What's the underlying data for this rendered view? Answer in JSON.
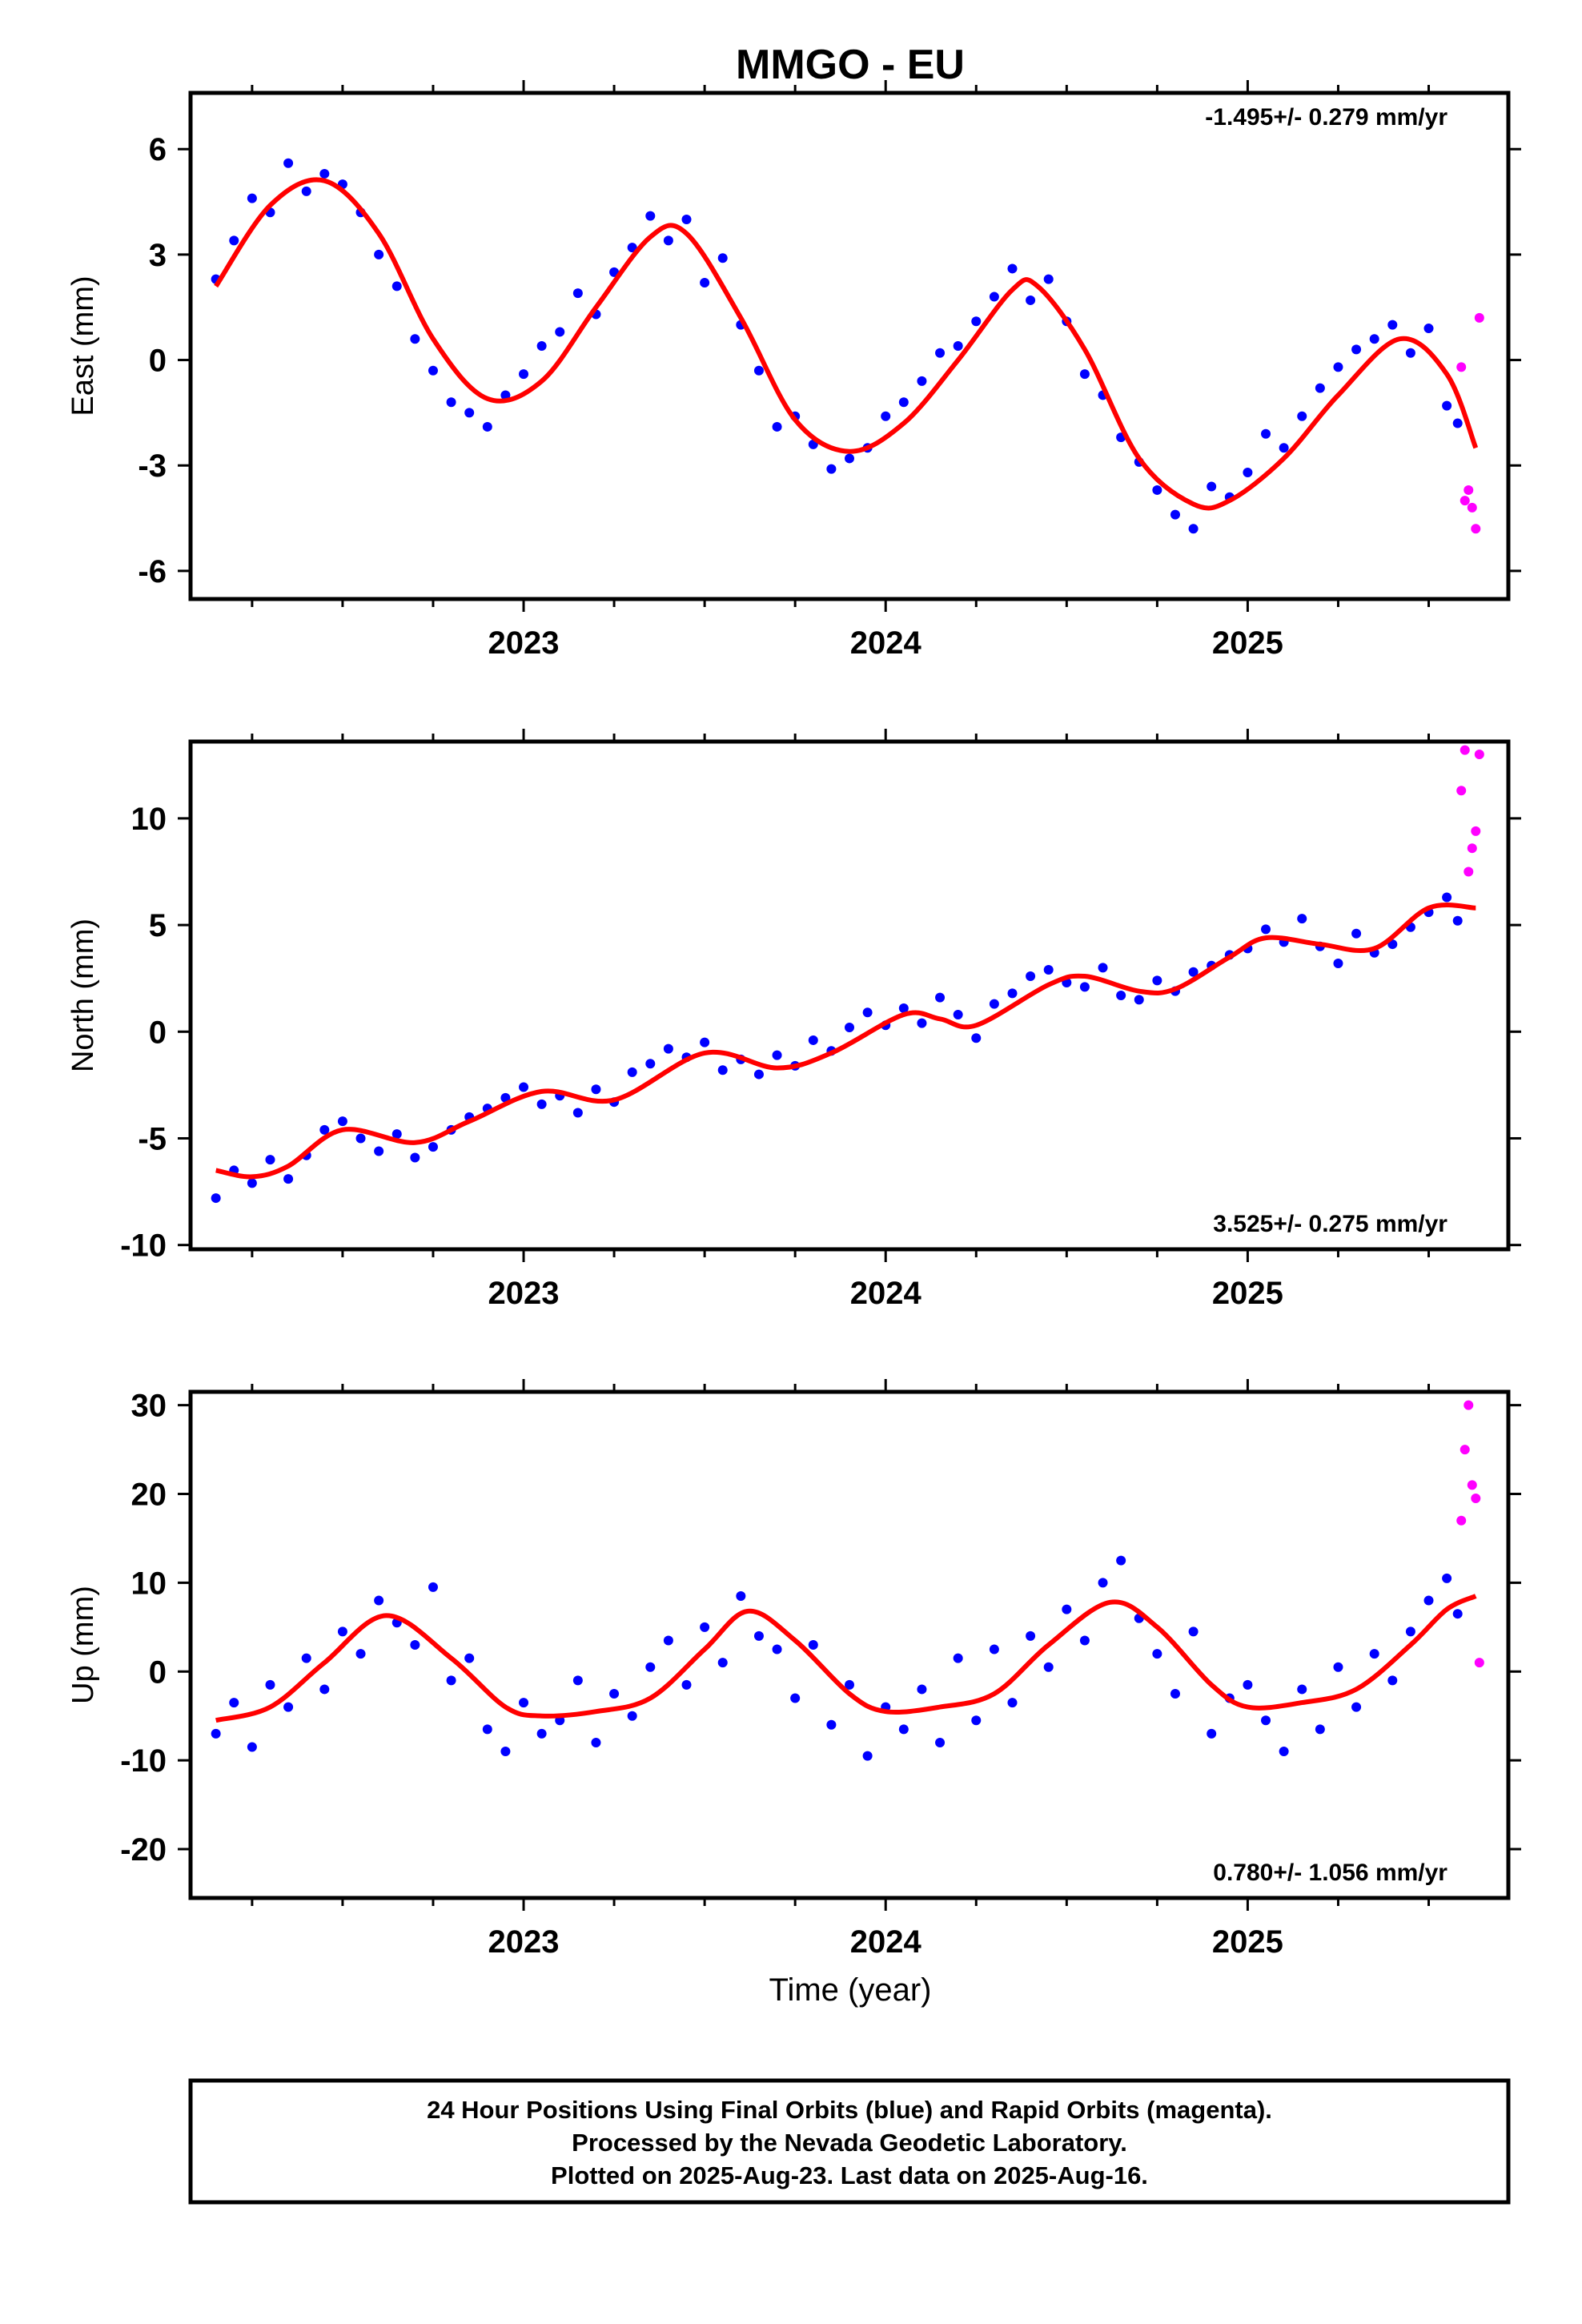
{
  "title": "MMGO - EU",
  "colors": {
    "final_orbits": "#0000ff",
    "rapid_orbits": "#ff00ff",
    "fit": "#ff0000",
    "frame": "#000000"
  },
  "xlabel": "Time (year)",
  "x_ticks": [
    "2023",
    "2024",
    "2025"
  ],
  "footer": {
    "line1": "24 Hour Positions Using Final Orbits (blue) and Rapid Orbits (magenta).",
    "line2": "Processed by the Nevada Geodetic Laboratory.",
    "line3": "Plotted on 2025-Aug-23. Last data on 2025-Aug-16."
  },
  "panels": [
    {
      "ylabel": "East (mm)",
      "rate": "-1.495+/- 0.279 mm/yr",
      "rate_position": "top-right",
      "y_ticks": [
        "6",
        "3",
        "0",
        "-3",
        "-6"
      ]
    },
    {
      "ylabel": "North (mm)",
      "rate": "3.525+/- 0.275 mm/yr",
      "rate_position": "bottom-right",
      "y_ticks": [
        "10",
        "5",
        "0",
        "-5",
        "-10"
      ]
    },
    {
      "ylabel": "Up (mm)",
      "rate": "0.780+/- 1.056 mm/yr",
      "rate_position": "bottom-right",
      "y_ticks": [
        "30",
        "20",
        "10",
        "0",
        "-10",
        "-20"
      ]
    }
  ],
  "chart_data": [
    {
      "type": "scatter",
      "component": "East",
      "ylabel": "East (mm)",
      "xlim": [
        2022.08,
        2025.72
      ],
      "ylim": [
        -6.8,
        7.6
      ],
      "x_ticks": [
        2023,
        2024,
        2025
      ],
      "y_ticks": [
        6,
        3,
        0,
        -3,
        -6
      ],
      "rate_mm_per_yr": -1.495,
      "rate_sigma": 0.279,
      "fit": {
        "x": [
          2022.15,
          2022.3,
          2022.45,
          2022.6,
          2022.75,
          2022.9,
          2023.05,
          2023.2,
          2023.35,
          2023.45,
          2023.6,
          2023.75,
          2023.9,
          2024.05,
          2024.2,
          2024.35,
          2024.42,
          2024.55,
          2024.7,
          2024.85,
          2024.95,
          2025.1,
          2025.25,
          2025.42,
          2025.55,
          2025.63
        ],
        "y": [
          2.1,
          4.4,
          5.1,
          3.6,
          0.6,
          -1.1,
          -0.6,
          1.5,
          3.5,
          3.6,
          1.2,
          -1.7,
          -2.6,
          -1.8,
          0.0,
          2.0,
          2.1,
          0.3,
          -2.8,
          -4.1,
          -4.0,
          -2.8,
          -1.0,
          0.6,
          -0.4,
          -2.5
        ]
      },
      "series": [
        {
          "name": "Final Orbits (blue)",
          "x": [
            2022.15,
            2022.2,
            2022.25,
            2022.3,
            2022.35,
            2022.4,
            2022.45,
            2022.5,
            2022.55,
            2022.6,
            2022.65,
            2022.7,
            2022.75,
            2022.8,
            2022.85,
            2022.9,
            2022.95,
            2023.0,
            2023.05,
            2023.1,
            2023.15,
            2023.2,
            2023.25,
            2023.3,
            2023.35,
            2023.4,
            2023.45,
            2023.5,
            2023.55,
            2023.6,
            2023.65,
            2023.7,
            2023.75,
            2023.8,
            2023.85,
            2023.9,
            2023.95,
            2024.0,
            2024.05,
            2024.1,
            2024.15,
            2024.2,
            2024.25,
            2024.3,
            2024.35,
            2024.4,
            2024.45,
            2024.5,
            2024.55,
            2024.6,
            2024.65,
            2024.7,
            2024.75,
            2024.8,
            2024.85,
            2024.9,
            2024.95,
            2025.0,
            2025.05,
            2025.1,
            2025.15,
            2025.2,
            2025.25,
            2025.3,
            2025.35,
            2025.4,
            2025.45,
            2025.5,
            2025.55,
            2025.58
          ],
          "y": [
            2.3,
            3.4,
            4.6,
            4.2,
            5.6,
            4.8,
            5.3,
            5.0,
            4.2,
            3.0,
            2.1,
            0.6,
            -0.3,
            -1.2,
            -1.5,
            -1.9,
            -1.0,
            -0.4,
            0.4,
            0.8,
            1.9,
            1.3,
            2.5,
            3.2,
            4.1,
            3.4,
            4.0,
            2.2,
            2.9,
            1.0,
            -0.3,
            -1.9,
            -1.6,
            -2.4,
            -3.1,
            -2.8,
            -2.5,
            -1.6,
            -1.2,
            -0.6,
            0.2,
            0.4,
            1.1,
            1.8,
            2.6,
            1.7,
            2.3,
            1.1,
            -0.4,
            -1.0,
            -2.2,
            -2.9,
            -3.7,
            -4.4,
            -4.8,
            -3.6,
            -3.9,
            -3.2,
            -2.1,
            -2.5,
            -1.6,
            -0.8,
            -0.2,
            0.3,
            0.6,
            1.0,
            0.2,
            0.9,
            -1.3,
            -1.8
          ]
        },
        {
          "name": "Rapid Orbits (magenta)",
          "x": [
            2025.59,
            2025.6,
            2025.61,
            2025.62,
            2025.63,
            2025.64
          ],
          "y": [
            -0.2,
            -4.0,
            -3.7,
            -4.2,
            -4.8,
            1.2
          ]
        }
      ]
    },
    {
      "type": "scatter",
      "component": "North",
      "ylabel": "North (mm)",
      "xlim": [
        2022.08,
        2025.72
      ],
      "ylim": [
        -10.2,
        13.6
      ],
      "x_ticks": [
        2023,
        2024,
        2025
      ],
      "y_ticks": [
        10,
        5,
        0,
        -5,
        -10
      ],
      "rate_mm_per_yr": 3.525,
      "rate_sigma": 0.275,
      "fit": {
        "x": [
          2022.15,
          2022.25,
          2022.35,
          2022.5,
          2022.7,
          2022.85,
          2023.05,
          2023.25,
          2023.5,
          2023.7,
          2023.85,
          2024.05,
          2024.15,
          2024.25,
          2024.45,
          2024.55,
          2024.7,
          2024.8,
          2024.95,
          2025.05,
          2025.2,
          2025.35,
          2025.5,
          2025.63
        ],
        "y": [
          -6.5,
          -6.8,
          -6.3,
          -4.6,
          -5.2,
          -4.2,
          -2.8,
          -3.2,
          -1.0,
          -1.7,
          -1.0,
          0.8,
          0.6,
          0.3,
          2.2,
          2.6,
          1.9,
          2.0,
          3.5,
          4.4,
          4.1,
          3.9,
          5.8,
          5.8
        ]
      },
      "series": [
        {
          "name": "Final Orbits (blue)",
          "x": [
            2022.15,
            2022.2,
            2022.25,
            2022.3,
            2022.35,
            2022.4,
            2022.45,
            2022.5,
            2022.55,
            2022.6,
            2022.65,
            2022.7,
            2022.75,
            2022.8,
            2022.85,
            2022.9,
            2022.95,
            2023.0,
            2023.05,
            2023.1,
            2023.15,
            2023.2,
            2023.25,
            2023.3,
            2023.35,
            2023.4,
            2023.45,
            2023.5,
            2023.55,
            2023.6,
            2023.65,
            2023.7,
            2023.75,
            2023.8,
            2023.85,
            2023.9,
            2023.95,
            2024.0,
            2024.05,
            2024.1,
            2024.15,
            2024.2,
            2024.25,
            2024.3,
            2024.35,
            2024.4,
            2024.45,
            2024.5,
            2024.55,
            2024.6,
            2024.65,
            2024.7,
            2024.75,
            2024.8,
            2024.85,
            2024.9,
            2024.95,
            2025.0,
            2025.05,
            2025.1,
            2025.15,
            2025.2,
            2025.25,
            2025.3,
            2025.35,
            2025.4,
            2025.45,
            2025.5,
            2025.55,
            2025.58
          ],
          "y": [
            -7.8,
            -6.5,
            -7.1,
            -6.0,
            -6.9,
            -5.8,
            -4.6,
            -4.2,
            -5.0,
            -5.6,
            -4.8,
            -5.9,
            -5.4,
            -4.6,
            -4.0,
            -3.6,
            -3.1,
            -2.6,
            -3.4,
            -3.0,
            -3.8,
            -2.7,
            -3.3,
            -1.9,
            -1.5,
            -0.8,
            -1.2,
            -0.5,
            -1.8,
            -1.3,
            -2.0,
            -1.1,
            -1.6,
            -0.4,
            -0.9,
            0.2,
            0.9,
            0.3,
            1.1,
            0.4,
            1.6,
            0.8,
            -0.3,
            1.3,
            1.8,
            2.6,
            2.9,
            2.3,
            2.1,
            3.0,
            1.7,
            1.5,
            2.4,
            1.9,
            2.8,
            3.1,
            3.6,
            3.9,
            4.8,
            4.2,
            5.3,
            4.0,
            3.2,
            4.6,
            3.7,
            4.1,
            4.9,
            5.6,
            6.3,
            5.2
          ]
        },
        {
          "name": "Rapid Orbits (magenta)",
          "x": [
            2025.59,
            2025.6,
            2025.61,
            2025.62,
            2025.63,
            2025.64
          ],
          "y": [
            11.3,
            13.2,
            7.5,
            8.6,
            9.4,
            13.0
          ]
        }
      ]
    },
    {
      "type": "scatter",
      "component": "Up",
      "ylabel": "Up (mm)",
      "xlim": [
        2022.08,
        2025.72
      ],
      "ylim": [
        -25.5,
        31.5
      ],
      "x_ticks": [
        2023,
        2024,
        2025
      ],
      "y_ticks": [
        30,
        20,
        10,
        0,
        -10,
        -20
      ],
      "rate_mm_per_yr": 0.78,
      "rate_sigma": 1.056,
      "fit": {
        "x": [
          2022.15,
          2022.3,
          2022.45,
          2022.62,
          2022.8,
          2022.95,
          2023.05,
          2023.2,
          2023.35,
          2023.5,
          2023.62,
          2023.75,
          2023.9,
          2024.0,
          2024.15,
          2024.3,
          2024.45,
          2024.62,
          2024.75,
          2024.9,
          2025.0,
          2025.15,
          2025.3,
          2025.45,
          2025.55,
          2025.63
        ],
        "y": [
          -5.5,
          -4.0,
          1.0,
          6.3,
          1.5,
          -4.0,
          -5.0,
          -4.5,
          -3.0,
          2.5,
          6.8,
          3.5,
          -2.5,
          -4.5,
          -4.0,
          -2.5,
          3.0,
          7.8,
          5.0,
          -1.5,
          -4.0,
          -3.5,
          -2.0,
          3.0,
          7.0,
          8.5
        ]
      },
      "series": [
        {
          "name": "Final Orbits (blue)",
          "x": [
            2022.15,
            2022.2,
            2022.25,
            2022.3,
            2022.35,
            2022.4,
            2022.45,
            2022.5,
            2022.55,
            2022.6,
            2022.65,
            2022.7,
            2022.75,
            2022.8,
            2022.85,
            2022.9,
            2022.95,
            2023.0,
            2023.05,
            2023.1,
            2023.15,
            2023.2,
            2023.25,
            2023.3,
            2023.35,
            2023.4,
            2023.45,
            2023.5,
            2023.55,
            2023.6,
            2023.65,
            2023.7,
            2023.75,
            2023.8,
            2023.85,
            2023.9,
            2023.95,
            2024.0,
            2024.05,
            2024.1,
            2024.15,
            2024.2,
            2024.25,
            2024.3,
            2024.35,
            2024.4,
            2024.45,
            2024.5,
            2024.55,
            2024.6,
            2024.65,
            2024.7,
            2024.75,
            2024.8,
            2024.85,
            2024.9,
            2024.95,
            2025.0,
            2025.05,
            2025.1,
            2025.15,
            2025.2,
            2025.25,
            2025.3,
            2025.35,
            2025.4,
            2025.45,
            2025.5,
            2025.55,
            2025.58
          ],
          "y": [
            -7.0,
            -3.5,
            -8.5,
            -1.5,
            -4.0,
            1.5,
            -2.0,
            4.5,
            2.0,
            8.0,
            5.5,
            3.0,
            9.5,
            -1.0,
            1.5,
            -6.5,
            -9.0,
            -3.5,
            -7.0,
            -5.5,
            -1.0,
            -8.0,
            -2.5,
            -5.0,
            0.5,
            3.5,
            -1.5,
            5.0,
            1.0,
            8.5,
            4.0,
            2.5,
            -3.0,
            3.0,
            -6.0,
            -1.5,
            -9.5,
            -4.0,
            -6.5,
            -2.0,
            -8.0,
            1.5,
            -5.5,
            2.5,
            -3.5,
            4.0,
            0.5,
            7.0,
            3.5,
            10.0,
            12.5,
            6.0,
            2.0,
            -2.5,
            4.5,
            -7.0,
            -3.0,
            -1.5,
            -5.5,
            -9.0,
            -2.0,
            -6.5,
            0.5,
            -4.0,
            2.0,
            -1.0,
            4.5,
            8.0,
            10.5,
            6.5
          ]
        },
        {
          "name": "Rapid Orbits (magenta)",
          "x": [
            2025.59,
            2025.6,
            2025.61,
            2025.62,
            2025.63,
            2025.64
          ],
          "y": [
            17.0,
            25.0,
            30.0,
            21.0,
            19.5,
            1.0
          ]
        }
      ]
    }
  ]
}
